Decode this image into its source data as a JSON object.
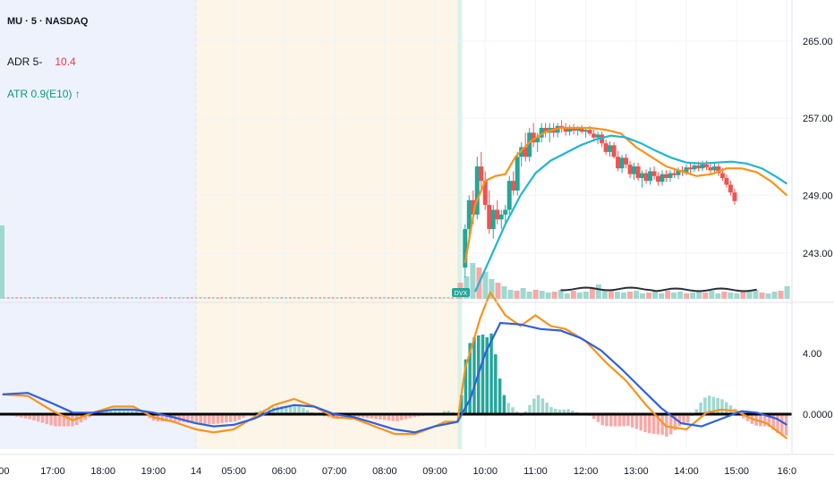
{
  "symbol_label": "MU · 5 · NASDAQ",
  "legend": {
    "adr_label": "ADR 5-",
    "adr_value": "10.4",
    "atr_label": "ATR 0.9(E10)",
    "atr_arrow": "↑"
  },
  "badge_text": "DVX",
  "colors": {
    "up": "#26a69a",
    "down": "#ef5350",
    "ema_fast": "#f7931a",
    "ema_slow": "#1fb6d0",
    "osc_fast": "#f7931a",
    "osc_slow": "#2f5fe0",
    "overnight_bg": "#eef2fd",
    "premarket_bg": "#fdf5e8"
  },
  "chart_data": [
    {
      "type": "candlestick",
      "pane": "price",
      "ylim": [
        239,
        268
      ],
      "y_ticks": [
        243,
        249,
        257,
        265
      ],
      "y_tick_labels": [
        "243.00",
        "249.00",
        "257.00",
        "265.00"
      ],
      "x_ticks": [
        ":00",
        "17:00",
        "18:00",
        "19:00",
        "14",
        "05:00",
        "06:00",
        "07:00",
        "08:00",
        "09:00",
        "10:00",
        "11:00",
        "12:00",
        "13:00",
        "14:00",
        "15:00",
        "16:0"
      ],
      "x_tick_times": [
        16,
        17,
        18,
        19,
        19.85,
        20.6,
        21.6,
        22.6,
        23.6,
        24.6,
        25.6,
        26.6,
        27.6,
        28.6,
        29.6,
        30.6,
        31.6
      ],
      "session_breaks": {
        "overnight_end": 19.85,
        "premarket_end": 25.05
      },
      "series": [
        {
          "name": "EMA fast",
          "points": [
            [
              25.2,
              242
            ],
            [
              25.4,
              248
            ],
            [
              25.6,
              250.5
            ],
            [
              25.8,
              251
            ],
            [
              26.0,
              251.2
            ],
            [
              26.2,
              253
            ],
            [
              26.5,
              254.6
            ],
            [
              26.8,
              255.6
            ],
            [
              27.1,
              256
            ],
            [
              27.4,
              256
            ],
            [
              27.7,
              256
            ],
            [
              28.0,
              255.8
            ],
            [
              28.3,
              255.4
            ],
            [
              28.6,
              254
            ],
            [
              28.9,
              253
            ],
            [
              29.2,
              252
            ],
            [
              29.5,
              251.5
            ],
            [
              29.8,
              251
            ],
            [
              30.1,
              251.2
            ],
            [
              30.4,
              251.8
            ],
            [
              30.7,
              251.8
            ],
            [
              31.0,
              251.4
            ],
            [
              31.3,
              250.4
            ],
            [
              31.6,
              249
            ]
          ]
        },
        {
          "name": "EMA slow",
          "points": [
            [
              25.4,
              239
            ],
            [
              25.7,
              242.5
            ],
            [
              26.0,
              246
            ],
            [
              26.3,
              249
            ],
            [
              26.6,
              251.3
            ],
            [
              26.9,
              252.6
            ],
            [
              27.2,
              253.4
            ],
            [
              27.5,
              254.2
            ],
            [
              27.8,
              254.8
            ],
            [
              28.1,
              255.2
            ],
            [
              28.4,
              255
            ],
            [
              28.7,
              254.4
            ],
            [
              29.0,
              253.6
            ],
            [
              29.3,
              252.9
            ],
            [
              29.6,
              252.4
            ],
            [
              29.9,
              252.3
            ],
            [
              30.2,
              252.4
            ],
            [
              30.5,
              252.5
            ],
            [
              30.8,
              252.3
            ],
            [
              31.1,
              251.8
            ],
            [
              31.4,
              250.9
            ],
            [
              31.6,
              250.2
            ]
          ]
        }
      ],
      "candles": [
        [
          25.2,
          241.5,
          246.0,
          240.5,
          245.5
        ],
        [
          25.28,
          245.5,
          249.0,
          244.5,
          248.5
        ],
        [
          25.36,
          248.5,
          249.5,
          246.0,
          247.0
        ],
        [
          25.44,
          247.0,
          253.0,
          246.5,
          252.0
        ],
        [
          25.52,
          252.0,
          253.5,
          249.5,
          250.5
        ],
        [
          25.6,
          250.5,
          251.5,
          247.5,
          248.0
        ],
        [
          25.68,
          248.0,
          249.5,
          245.0,
          245.5
        ],
        [
          25.76,
          245.5,
          248.0,
          244.5,
          247.5
        ],
        [
          25.84,
          247.5,
          248.5,
          246.0,
          246.5
        ],
        [
          25.92,
          246.5,
          247.5,
          245.5,
          247.0
        ],
        [
          26.0,
          247.0,
          248.0,
          246.0,
          247.5
        ],
        [
          26.08,
          247.5,
          251.0,
          247.0,
          250.5
        ],
        [
          26.16,
          250.5,
          251.5,
          249.0,
          249.5
        ],
        [
          26.24,
          249.5,
          253.5,
          249.0,
          253.0
        ],
        [
          26.32,
          253.0,
          254.5,
          252.0,
          254.0
        ],
        [
          26.4,
          254.0,
          255.5,
          252.5,
          253.0
        ],
        [
          26.48,
          253.0,
          256.0,
          252.5,
          255.5
        ],
        [
          26.56,
          255.5,
          256.5,
          254.0,
          254.5
        ],
        [
          26.64,
          254.5,
          255.5,
          253.5,
          255.0
        ],
        [
          26.72,
          255.0,
          256.5,
          254.5,
          256.0
        ],
        [
          26.8,
          256.0,
          256.5,
          255.0,
          255.5
        ],
        [
          26.88,
          255.5,
          256.5,
          254.5,
          256.0
        ],
        [
          26.96,
          256.0,
          256.5,
          255.0,
          255.5
        ],
        [
          27.04,
          255.5,
          256.5,
          255.0,
          256.2
        ],
        [
          27.12,
          256.2,
          256.8,
          255.5,
          256.0
        ],
        [
          27.2,
          256.0,
          256.5,
          255.2,
          255.6
        ],
        [
          27.28,
          255.6,
          256.3,
          255.2,
          256.0
        ],
        [
          27.36,
          256.0,
          256.4,
          255.3,
          255.7
        ],
        [
          27.44,
          255.7,
          256.2,
          255.2,
          255.9
        ],
        [
          27.52,
          255.9,
          256.3,
          255.4,
          255.6
        ],
        [
          27.6,
          255.6,
          256.0,
          255.0,
          255.8
        ],
        [
          27.68,
          255.8,
          256.2,
          255.2,
          255.4
        ],
        [
          27.76,
          255.4,
          255.8,
          254.6,
          255.0
        ],
        [
          27.84,
          255.0,
          255.6,
          254.3,
          255.3
        ],
        [
          27.92,
          255.3,
          255.6,
          254.0,
          254.4
        ],
        [
          28.0,
          254.4,
          254.8,
          253.2,
          253.5
        ],
        [
          28.08,
          253.5,
          254.6,
          253.0,
          254.2
        ],
        [
          28.16,
          254.2,
          254.5,
          252.8,
          253.0
        ],
        [
          28.24,
          253.0,
          253.6,
          251.5,
          251.8
        ],
        [
          28.32,
          251.8,
          253.2,
          251.3,
          252.9
        ],
        [
          28.4,
          252.9,
          253.3,
          251.8,
          252.2
        ],
        [
          28.48,
          252.2,
          252.6,
          250.8,
          251.2
        ],
        [
          28.56,
          251.2,
          252.4,
          250.6,
          252.0
        ],
        [
          28.64,
          252.0,
          252.4,
          250.5,
          250.8
        ],
        [
          28.72,
          250.8,
          251.6,
          249.8,
          251.3
        ],
        [
          28.8,
          251.3,
          251.7,
          250.2,
          250.5
        ],
        [
          28.88,
          250.5,
          251.9,
          250.1,
          251.5
        ],
        [
          28.96,
          251.5,
          252.0,
          250.6,
          251.0
        ],
        [
          29.04,
          251.0,
          251.4,
          250.0,
          250.4
        ],
        [
          29.12,
          250.4,
          251.6,
          250.0,
          251.2
        ],
        [
          29.2,
          251.2,
          251.6,
          250.4,
          250.8
        ],
        [
          29.28,
          250.8,
          251.6,
          250.4,
          251.3
        ],
        [
          29.36,
          251.3,
          251.8,
          250.8,
          251.1
        ],
        [
          29.44,
          251.1,
          251.9,
          250.7,
          251.6
        ],
        [
          29.52,
          251.6,
          252.0,
          251.0,
          251.4
        ],
        [
          29.6,
          251.4,
          252.2,
          251.1,
          251.9
        ],
        [
          29.68,
          251.9,
          252.3,
          251.3,
          251.7
        ],
        [
          29.76,
          251.7,
          252.4,
          251.4,
          252.1
        ],
        [
          29.84,
          252.1,
          252.5,
          251.5,
          251.8
        ],
        [
          29.92,
          251.8,
          252.6,
          251.5,
          252.2
        ],
        [
          30.0,
          252.2,
          252.6,
          251.6,
          251.9
        ],
        [
          30.08,
          251.9,
          252.4,
          251.3,
          251.6
        ],
        [
          30.16,
          251.6,
          252.3,
          251.2,
          252.0
        ],
        [
          30.24,
          252.0,
          252.3,
          251.0,
          251.3
        ],
        [
          30.32,
          251.3,
          251.8,
          250.5,
          250.8
        ],
        [
          30.4,
          250.8,
          251.2,
          249.8,
          250.1
        ],
        [
          30.48,
          250.1,
          250.5,
          249.0,
          249.3
        ],
        [
          30.56,
          249.3,
          249.7,
          248.0,
          248.4
        ]
      ],
      "volume": {
        "note": "volume histogram at bottom of price pane; averaged volume line in dark grey"
      }
    },
    {
      "type": "oscillator",
      "pane": "indicator",
      "ylim": [
        -2.0,
        8.0
      ],
      "y_ticks": [
        0.0,
        4.0
      ],
      "y_tick_labels": [
        "0.0000",
        "4.00"
      ],
      "zero_line": 0,
      "series": [
        {
          "name": "Fast",
          "points": [
            [
              16.0,
              1.3
            ],
            [
              16.5,
              1.2
            ],
            [
              17.0,
              0.2
            ],
            [
              17.4,
              -0.4
            ],
            [
              17.8,
              0.1
            ],
            [
              18.2,
              0.5
            ],
            [
              18.6,
              0.5
            ],
            [
              19.0,
              -0.2
            ],
            [
              19.4,
              -0.5
            ],
            [
              19.85,
              -1.0
            ],
            [
              20.2,
              -1.2
            ],
            [
              20.6,
              -1.0
            ],
            [
              21.0,
              -0.2
            ],
            [
              21.4,
              0.6
            ],
            [
              21.8,
              1.0
            ],
            [
              22.2,
              0.5
            ],
            [
              22.6,
              -0.2
            ],
            [
              23.0,
              -0.3
            ],
            [
              23.4,
              -0.8
            ],
            [
              23.8,
              -1.3
            ],
            [
              24.2,
              -1.3
            ],
            [
              24.6,
              -0.8
            ],
            [
              24.8,
              -0.5
            ],
            [
              25.05,
              -0.5
            ],
            [
              25.2,
              3.0
            ],
            [
              25.5,
              6.3
            ],
            [
              25.7,
              8.0
            ],
            [
              26.0,
              6.5
            ],
            [
              26.3,
              5.8
            ],
            [
              26.6,
              6.5
            ],
            [
              26.9,
              5.8
            ],
            [
              27.2,
              5.6
            ],
            [
              27.6,
              4.8
            ],
            [
              28.0,
              3.4
            ],
            [
              28.4,
              2.2
            ],
            [
              28.8,
              0.6
            ],
            [
              29.2,
              -0.8
            ],
            [
              29.6,
              -1.0
            ],
            [
              30.0,
              0.1
            ],
            [
              30.3,
              0.3
            ],
            [
              30.6,
              0.2
            ],
            [
              30.9,
              -0.3
            ],
            [
              31.2,
              -0.6
            ],
            [
              31.6,
              -1.6
            ]
          ]
        },
        {
          "name": "Slow",
          "points": [
            [
              16.0,
              1.3
            ],
            [
              16.5,
              1.4
            ],
            [
              17.0,
              0.7
            ],
            [
              17.4,
              0.1
            ],
            [
              17.8,
              0.1
            ],
            [
              18.2,
              0.3
            ],
            [
              18.6,
              0.3
            ],
            [
              19.0,
              0.1
            ],
            [
              19.4,
              -0.2
            ],
            [
              19.85,
              -0.6
            ],
            [
              20.2,
              -0.8
            ],
            [
              20.6,
              -0.7
            ],
            [
              21.0,
              -0.3
            ],
            [
              21.4,
              0.3
            ],
            [
              21.8,
              0.6
            ],
            [
              22.2,
              0.5
            ],
            [
              22.6,
              0.0
            ],
            [
              23.0,
              -0.2
            ],
            [
              23.4,
              -0.6
            ],
            [
              23.8,
              -1.0
            ],
            [
              24.2,
              -1.2
            ],
            [
              24.6,
              -0.8
            ],
            [
              25.05,
              -0.5
            ],
            [
              25.3,
              1.0
            ],
            [
              25.6,
              4.0
            ],
            [
              25.9,
              6.0
            ],
            [
              26.3,
              5.9
            ],
            [
              26.7,
              5.6
            ],
            [
              27.1,
              5.5
            ],
            [
              27.5,
              5.0
            ],
            [
              27.9,
              4.2
            ],
            [
              28.3,
              3.0
            ],
            [
              28.7,
              1.7
            ],
            [
              29.1,
              0.4
            ],
            [
              29.5,
              -0.6
            ],
            [
              29.9,
              -0.8
            ],
            [
              30.3,
              -0.3
            ],
            [
              30.7,
              0.2
            ],
            [
              31.0,
              0.1
            ],
            [
              31.4,
              -0.3
            ],
            [
              31.6,
              -0.7
            ]
          ]
        }
      ]
    }
  ]
}
